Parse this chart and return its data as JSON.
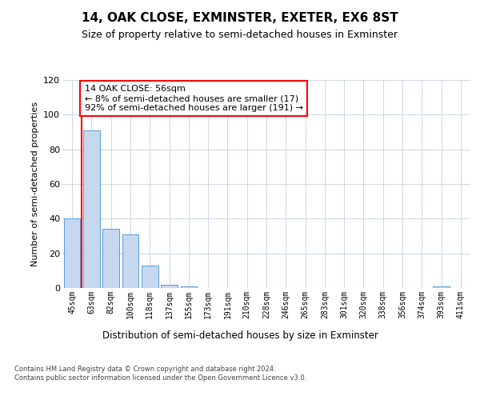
{
  "title": "14, OAK CLOSE, EXMINSTER, EXETER, EX6 8ST",
  "subtitle": "Size of property relative to semi-detached houses in Exminster",
  "xlabel": "Distribution of semi-detached houses by size in Exminster",
  "ylabel": "Number of semi-detached properties",
  "categories": [
    "45sqm",
    "63sqm",
    "82sqm",
    "100sqm",
    "118sqm",
    "137sqm",
    "155sqm",
    "173sqm",
    "191sqm",
    "210sqm",
    "228sqm",
    "246sqm",
    "265sqm",
    "283sqm",
    "301sqm",
    "320sqm",
    "338sqm",
    "356sqm",
    "374sqm",
    "393sqm",
    "411sqm"
  ],
  "values": [
    40,
    91,
    34,
    31,
    13,
    2,
    1,
    0,
    0,
    0,
    0,
    0,
    0,
    0,
    0,
    0,
    0,
    0,
    0,
    1,
    0
  ],
  "bar_color": "#c5d8f0",
  "bar_edge_color": "#5b9bd5",
  "highlight_line_color": "red",
  "annotation_text": "14 OAK CLOSE: 56sqm\n← 8% of semi-detached houses are smaller (17)\n92% of semi-detached houses are larger (191) →",
  "annotation_box_color": "white",
  "annotation_box_edge_color": "red",
  "ylim": [
    0,
    120
  ],
  "yticks": [
    0,
    20,
    40,
    60,
    80,
    100,
    120
  ],
  "background_color": "white",
  "grid_color": "#d0d8e8",
  "footer_text": "Contains HM Land Registry data © Crown copyright and database right 2024.\nContains public sector information licensed under the Open Government Licence v3.0.",
  "title_fontsize": 11,
  "subtitle_fontsize": 9,
  "xlabel_fontsize": 8.5,
  "ylabel_fontsize": 8,
  "annotation_fontsize": 8,
  "tick_fontsize": 7
}
